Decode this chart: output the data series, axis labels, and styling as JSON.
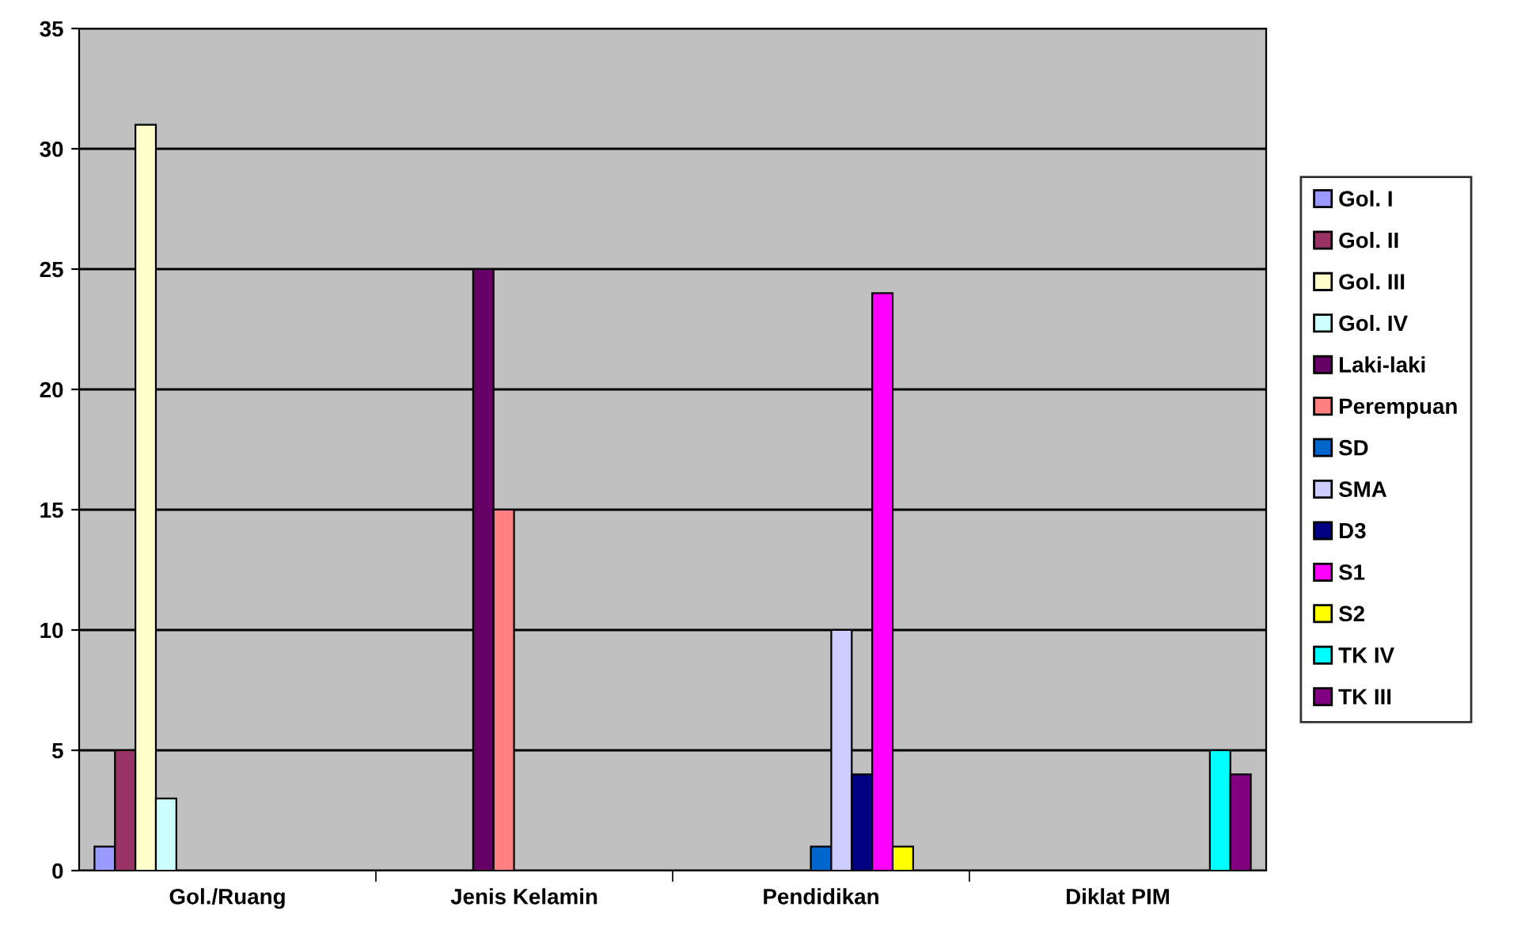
{
  "chart_data": {
    "type": "bar",
    "categories": [
      "Gol./Ruang",
      "Jenis Kelamin",
      "Pendidikan",
      "Diklat PIM"
    ],
    "series": [
      {
        "name": "Gol. I",
        "color": "#9999ff",
        "values": [
          1,
          null,
          null,
          null
        ]
      },
      {
        "name": "Gol. II",
        "color": "#993366",
        "values": [
          5,
          null,
          null,
          null
        ]
      },
      {
        "name": "Gol. III",
        "color": "#ffffcc",
        "values": [
          31,
          null,
          null,
          null
        ]
      },
      {
        "name": "Gol. IV",
        "color": "#ccffff",
        "values": [
          3,
          null,
          null,
          null
        ]
      },
      {
        "name": "Laki-laki",
        "color": "#660066",
        "values": [
          null,
          25,
          null,
          null
        ]
      },
      {
        "name": "Perempuan",
        "color": "#ff8080",
        "values": [
          null,
          15,
          null,
          null
        ]
      },
      {
        "name": "SD",
        "color": "#0066cc",
        "values": [
          null,
          null,
          1,
          null
        ]
      },
      {
        "name": "SMA",
        "color": "#ccccff",
        "values": [
          null,
          null,
          10,
          null
        ]
      },
      {
        "name": "D3",
        "color": "#000080",
        "values": [
          null,
          null,
          4,
          null
        ]
      },
      {
        "name": "S1",
        "color": "#ff00ff",
        "values": [
          null,
          null,
          24,
          null
        ]
      },
      {
        "name": "S2",
        "color": "#ffff00",
        "values": [
          null,
          null,
          1,
          null
        ]
      },
      {
        "name": "TK IV",
        "color": "#00ffff",
        "values": [
          null,
          null,
          null,
          5
        ]
      },
      {
        "name": "TK III",
        "color": "#800080",
        "values": [
          null,
          null,
          null,
          4
        ]
      }
    ],
    "ylim": [
      0,
      35
    ],
    "yticks": [
      0,
      5,
      10,
      15,
      20,
      25,
      30,
      35
    ],
    "grid": "y",
    "legend": "right"
  }
}
